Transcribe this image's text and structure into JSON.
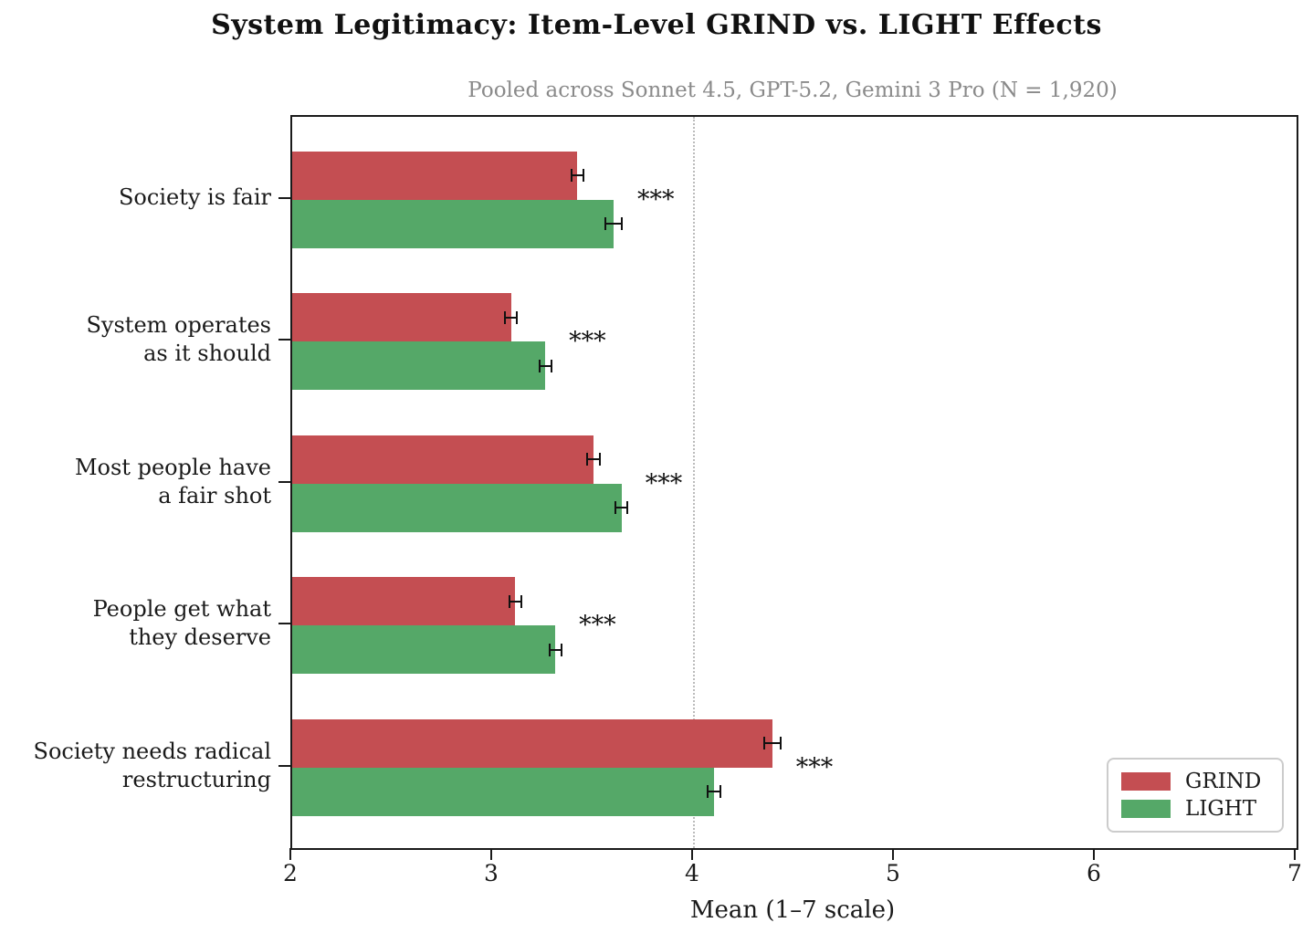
{
  "title": "System Legitimacy: Item-Level GRIND vs. LIGHT Effects",
  "subtitle": "Pooled across Sonnet 4.5, GPT-5.2, Gemini 3 Pro  (N = 1,920)",
  "chart_data": {
    "type": "bar",
    "orientation": "horizontal",
    "title": "System Legitimacy: Item-Level GRIND vs. LIGHT Effects",
    "subtitle": "Pooled across Sonnet 4.5, GPT-5.2, Gemini 3 Pro  (N = 1,920)",
    "categories": [
      "Society is fair",
      "System operates\nas it should",
      "Most people have\na fair shot",
      "People get what\nthey deserve",
      "Society needs radical\nrestructuring"
    ],
    "series": [
      {
        "name": "GRIND",
        "color": "#c44e52",
        "values": [
          3.42,
          3.09,
          3.5,
          3.11,
          4.39
        ],
        "errors": [
          0.03,
          0.03,
          0.03,
          0.03,
          0.04
        ]
      },
      {
        "name": "LIGHT",
        "color": "#55a868",
        "values": [
          3.6,
          3.26,
          3.64,
          3.31,
          4.1
        ],
        "errors": [
          0.04,
          0.03,
          0.03,
          0.03,
          0.03
        ]
      }
    ],
    "significance_labels": [
      "***",
      "***",
      "***",
      "***",
      "***"
    ],
    "xlabel": "Mean (1–7 scale)",
    "xlim": [
      2,
      7
    ],
    "xticks": [
      "2",
      "3",
      "4",
      "5",
      "6",
      "7"
    ],
    "reference_line_x": 4,
    "grid": false,
    "legend_position": "lower right",
    "legend_entries": [
      "GRIND",
      "LIGHT"
    ]
  },
  "colors": {
    "grind": "#c44e52",
    "light": "#55a868",
    "reference_line": "#bbbbbb",
    "subtitle_gray": "#8a8a8a",
    "spine": "#1a1a1a"
  }
}
